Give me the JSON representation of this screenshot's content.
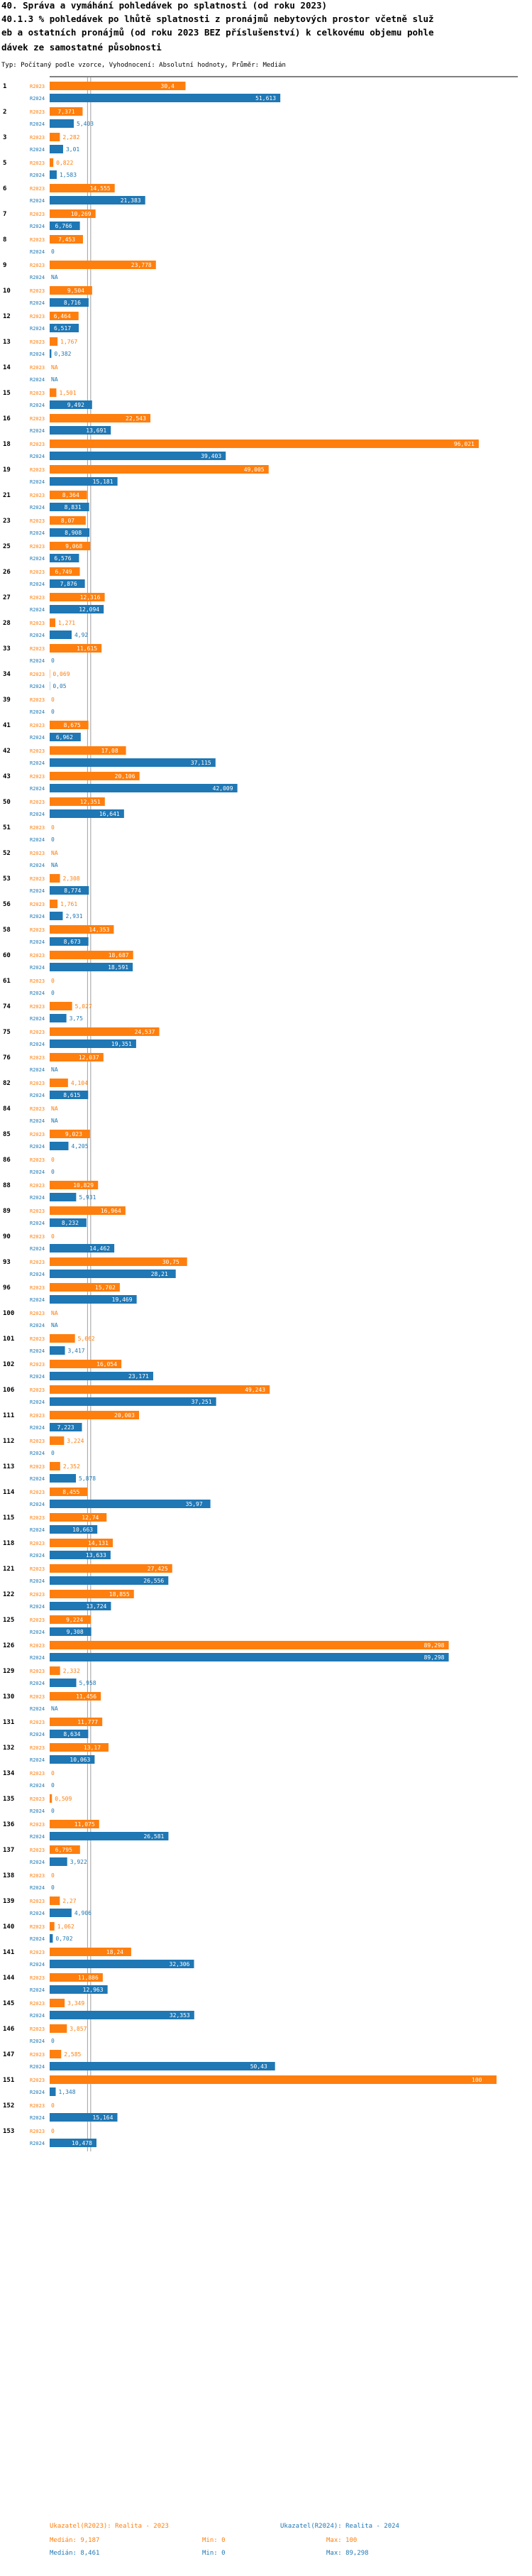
{
  "title_lines": [
    "40. Správa a vymáhání pohledávek po splatnosti (od roku 2023)",
    "40.1.3 % pohledávek po lhůtě splatnosti z pronájmů nebytových prostor včetně služ",
    "eb a ostatních pronájmů (od roku 2023 BEZ příslušenství) k celkovému objemu pohle",
    "dávek ze samostatné působnosti"
  ],
  "subtitle": "Typ: Počítaný podle vzorce, Vyhodnocení: Absolutní hodnoty, Průměr: Medián",
  "legend": {
    "r2023": {
      "name": "Ukazatel(R2023): Realita - 2023",
      "median": "Medián: 9,187",
      "min": "Min: 0",
      "max": "Max: 100"
    },
    "r2024": {
      "name": "Ukazatel(R2024): Realita - 2024",
      "median": "Medián: 8,461",
      "min": "Min: 0",
      "max": "Max: 89,298"
    }
  },
  "chart_data": {
    "type": "bar",
    "orientation": "horizontal",
    "series_names": [
      "R2023",
      "R2024"
    ],
    "colors": {
      "R2023": "#ff7f0e",
      "R2024": "#1f77b4",
      "text": "#000000",
      "grid": "#888888"
    },
    "xlim": [
      0,
      100
    ],
    "medians": {
      "R2023": 9.187,
      "R2024": 8.461
    },
    "categories": [
      {
        "id": "1",
        "r2023": {
          "v": 30.4,
          "l": "30,4"
        },
        "r2024": {
          "v": 51.613,
          "l": "51,613"
        }
      },
      {
        "id": "2",
        "r2023": {
          "v": 7.371,
          "l": "7,371"
        },
        "r2024": {
          "v": 5.403,
          "l": "5,403"
        }
      },
      {
        "id": "3",
        "r2023": {
          "v": 2.282,
          "l": "2,282"
        },
        "r2024": {
          "v": 3.01,
          "l": "3,01"
        }
      },
      {
        "id": "5",
        "r2023": {
          "v": 0.822,
          "l": "0,822"
        },
        "r2024": {
          "v": 1.583,
          "l": "1,583"
        }
      },
      {
        "id": "6",
        "r2023": {
          "v": 14.555,
          "l": "14,555"
        },
        "r2024": {
          "v": 21.383,
          "l": "21,383"
        }
      },
      {
        "id": "7",
        "r2023": {
          "v": 10.269,
          "l": "10,269"
        },
        "r2024": {
          "v": 6.766,
          "l": "6,766"
        }
      },
      {
        "id": "8",
        "r2023": {
          "v": 7.453,
          "l": "7,453"
        },
        "r2024": {
          "v": 0,
          "l": "0"
        }
      },
      {
        "id": "9",
        "r2023": {
          "v": 23.778,
          "l": "23,778"
        },
        "r2024": {
          "v": null,
          "l": "NA"
        }
      },
      {
        "id": "10",
        "r2023": {
          "v": 9.504,
          "l": "9,504"
        },
        "r2024": {
          "v": 8.716,
          "l": "8,716"
        }
      },
      {
        "id": "12",
        "r2023": {
          "v": 6.464,
          "l": "6,464"
        },
        "r2024": {
          "v": 6.517,
          "l": "6,517"
        }
      },
      {
        "id": "13",
        "r2023": {
          "v": 1.767,
          "l": "1,767"
        },
        "r2024": {
          "v": 0.382,
          "l": "0,382"
        }
      },
      {
        "id": "14",
        "r2023": {
          "v": null,
          "l": "NA"
        },
        "r2024": {
          "v": null,
          "l": "NA"
        }
      },
      {
        "id": "15",
        "r2023": {
          "v": 1.501,
          "l": "1,501"
        },
        "r2024": {
          "v": 9.492,
          "l": "9,492"
        }
      },
      {
        "id": "16",
        "r2023": {
          "v": 22.543,
          "l": "22,543"
        },
        "r2024": {
          "v": 13.691,
          "l": "13,691"
        }
      },
      {
        "id": "18",
        "r2023": {
          "v": 96.021,
          "l": "96,021"
        },
        "r2024": {
          "v": 39.403,
          "l": "39,403"
        }
      },
      {
        "id": "19",
        "r2023": {
          "v": 49.005,
          "l": "49,005"
        },
        "r2024": {
          "v": 15.181,
          "l": "15,181"
        }
      },
      {
        "id": "21",
        "r2023": {
          "v": 8.364,
          "l": "8,364"
        },
        "r2024": {
          "v": 8.831,
          "l": "8,831"
        }
      },
      {
        "id": "23",
        "r2023": {
          "v": 8.07,
          "l": "8,07"
        },
        "r2024": {
          "v": 8.908,
          "l": "8,908"
        }
      },
      {
        "id": "25",
        "r2023": {
          "v": 9.068,
          "l": "9,068"
        },
        "r2024": {
          "v": 6.576,
          "l": "6,576"
        }
      },
      {
        "id": "26",
        "r2023": {
          "v": 6.749,
          "l": "6,749"
        },
        "r2024": {
          "v": 7.876,
          "l": "7,876"
        }
      },
      {
        "id": "27",
        "r2023": {
          "v": 12.316,
          "l": "12,316"
        },
        "r2024": {
          "v": 12.094,
          "l": "12,094"
        }
      },
      {
        "id": "28",
        "r2023": {
          "v": 1.271,
          "l": "1,271"
        },
        "r2024": {
          "v": 4.92,
          "l": "4,92"
        }
      },
      {
        "id": "33",
        "r2023": {
          "v": 11.615,
          "l": "11,615"
        },
        "r2024": {
          "v": 0,
          "l": "0"
        }
      },
      {
        "id": "34",
        "r2023": {
          "v": 0.069,
          "l": "0,069"
        },
        "r2024": {
          "v": 0.05,
          "l": "0,05"
        }
      },
      {
        "id": "39",
        "r2023": {
          "v": 0,
          "l": "0"
        },
        "r2024": {
          "v": 0,
          "l": "0"
        }
      },
      {
        "id": "41",
        "r2023": {
          "v": 8.675,
          "l": "8,675"
        },
        "r2024": {
          "v": 6.962,
          "l": "6,962"
        }
      },
      {
        "id": "42",
        "r2023": {
          "v": 17.08,
          "l": "17,08"
        },
        "r2024": {
          "v": 37.115,
          "l": "37,115"
        }
      },
      {
        "id": "43",
        "r2023": {
          "v": 20.106,
          "l": "20,106"
        },
        "r2024": {
          "v": 42.009,
          "l": "42,009"
        }
      },
      {
        "id": "50",
        "r2023": {
          "v": 12.351,
          "l": "12,351"
        },
        "r2024": {
          "v": 16.641,
          "l": "16,641"
        }
      },
      {
        "id": "51",
        "r2023": {
          "v": 0,
          "l": "0"
        },
        "r2024": {
          "v": 0,
          "l": "0"
        }
      },
      {
        "id": "52",
        "r2023": {
          "v": null,
          "l": "NA"
        },
        "r2024": {
          "v": null,
          "l": "NA"
        }
      },
      {
        "id": "53",
        "r2023": {
          "v": 2.308,
          "l": "2,308"
        },
        "r2024": {
          "v": 8.774,
          "l": "8,774"
        }
      },
      {
        "id": "56",
        "r2023": {
          "v": 1.761,
          "l": "1,761"
        },
        "r2024": {
          "v": 2.931,
          "l": "2,931"
        }
      },
      {
        "id": "58",
        "r2023": {
          "v": 14.353,
          "l": "14,353"
        },
        "r2024": {
          "v": 8.673,
          "l": "8,673"
        }
      },
      {
        "id": "60",
        "r2023": {
          "v": 18.687,
          "l": "18,687"
        },
        "r2024": {
          "v": 18.591,
          "l": "18,591"
        }
      },
      {
        "id": "61",
        "r2023": {
          "v": 0,
          "l": "0"
        },
        "r2024": {
          "v": 0,
          "l": "0"
        }
      },
      {
        "id": "74",
        "r2023": {
          "v": 5.027,
          "l": "5,027"
        },
        "r2024": {
          "v": 3.75,
          "l": "3,75"
        }
      },
      {
        "id": "75",
        "r2023": {
          "v": 24.537,
          "l": "24,537"
        },
        "r2024": {
          "v": 19.351,
          "l": "19,351"
        }
      },
      {
        "id": "76",
        "r2023": {
          "v": 12.037,
          "l": "12,037"
        },
        "r2024": {
          "v": null,
          "l": "NA"
        }
      },
      {
        "id": "82",
        "r2023": {
          "v": 4.104,
          "l": "4,104"
        },
        "r2024": {
          "v": 8.615,
          "l": "8,615"
        }
      },
      {
        "id": "84",
        "r2023": {
          "v": null,
          "l": "NA"
        },
        "r2024": {
          "v": null,
          "l": "NA"
        }
      },
      {
        "id": "85",
        "r2023": {
          "v": 9.023,
          "l": "9,023"
        },
        "r2024": {
          "v": 4.205,
          "l": "4,205"
        }
      },
      {
        "id": "86",
        "r2023": {
          "v": 0,
          "l": "0"
        },
        "r2024": {
          "v": 0,
          "l": "0"
        }
      },
      {
        "id": "88",
        "r2023": {
          "v": 10.829,
          "l": "10,829"
        },
        "r2024": {
          "v": 5.931,
          "l": "5,931"
        }
      },
      {
        "id": "89",
        "r2023": {
          "v": 16.964,
          "l": "16,964"
        },
        "r2024": {
          "v": 8.232,
          "l": "8,232"
        }
      },
      {
        "id": "90",
        "r2023": {
          "v": 0,
          "l": "0"
        },
        "r2024": {
          "v": 14.462,
          "l": "14,462"
        }
      },
      {
        "id": "93",
        "r2023": {
          "v": 30.75,
          "l": "30,75"
        },
        "r2024": {
          "v": 28.21,
          "l": "28,21"
        }
      },
      {
        "id": "96",
        "r2023": {
          "v": 15.702,
          "l": "15,702"
        },
        "r2024": {
          "v": 19.469,
          "l": "19,469"
        }
      },
      {
        "id": "100",
        "r2023": {
          "v": null,
          "l": "NA"
        },
        "r2024": {
          "v": null,
          "l": "NA"
        }
      },
      {
        "id": "101",
        "r2023": {
          "v": 5.662,
          "l": "5,662"
        },
        "r2024": {
          "v": 3.417,
          "l": "3,417"
        }
      },
      {
        "id": "102",
        "r2023": {
          "v": 16.054,
          "l": "16,054"
        },
        "r2024": {
          "v": 23.171,
          "l": "23,171"
        }
      },
      {
        "id": "106",
        "r2023": {
          "v": 49.243,
          "l": "49,243"
        },
        "r2024": {
          "v": 37.251,
          "l": "37,251"
        }
      },
      {
        "id": "111",
        "r2023": {
          "v": 20.003,
          "l": "20,003"
        },
        "r2024": {
          "v": 7.223,
          "l": "7,223"
        }
      },
      {
        "id": "112",
        "r2023": {
          "v": 3.224,
          "l": "3,224"
        },
        "r2024": {
          "v": 0,
          "l": "0"
        }
      },
      {
        "id": "113",
        "r2023": {
          "v": 2.352,
          "l": "2,352"
        },
        "r2024": {
          "v": 5.878,
          "l": "5,878"
        }
      },
      {
        "id": "114",
        "r2023": {
          "v": 8.455,
          "l": "8,455"
        },
        "r2024": {
          "v": 35.97,
          "l": "35,97"
        }
      },
      {
        "id": "115",
        "r2023": {
          "v": 12.74,
          "l": "12,74"
        },
        "r2024": {
          "v": 10.663,
          "l": "10,663"
        }
      },
      {
        "id": "118",
        "r2023": {
          "v": 14.131,
          "l": "14,131"
        },
        "r2024": {
          "v": 13.633,
          "l": "13,633"
        }
      },
      {
        "id": "121",
        "r2023": {
          "v": 27.425,
          "l": "27,425"
        },
        "r2024": {
          "v": 26.556,
          "l": "26,556"
        }
      },
      {
        "id": "122",
        "r2023": {
          "v": 18.855,
          "l": "18,855"
        },
        "r2024": {
          "v": 13.724,
          "l": "13,724"
        }
      },
      {
        "id": "125",
        "r2023": {
          "v": 9.224,
          "l": "9,224"
        },
        "r2024": {
          "v": 9.308,
          "l": "9,308"
        }
      },
      {
        "id": "126",
        "r2023": {
          "v": 89.298,
          "l": "89,298"
        },
        "r2024": {
          "v": 89.298,
          "l": "89,298"
        }
      },
      {
        "id": "129",
        "r2023": {
          "v": 2.332,
          "l": "2,332"
        },
        "r2024": {
          "v": 5.958,
          "l": "5,958"
        }
      },
      {
        "id": "130",
        "r2023": {
          "v": 11.456,
          "l": "11,456"
        },
        "r2024": {
          "v": null,
          "l": "NA"
        }
      },
      {
        "id": "131",
        "r2023": {
          "v": 11.777,
          "l": "11,777"
        },
        "r2024": {
          "v": 8.634,
          "l": "8,634"
        }
      },
      {
        "id": "132",
        "r2023": {
          "v": 13.17,
          "l": "13,17"
        },
        "r2024": {
          "v": 10.063,
          "l": "10,063"
        }
      },
      {
        "id": "134",
        "r2023": {
          "v": 0,
          "l": "0"
        },
        "r2024": {
          "v": 0,
          "l": "0"
        }
      },
      {
        "id": "135",
        "r2023": {
          "v": 0.509,
          "l": "0,509"
        },
        "r2024": {
          "v": 0,
          "l": "0"
        }
      },
      {
        "id": "136",
        "r2023": {
          "v": 11.075,
          "l": "11,075"
        },
        "r2024": {
          "v": 26.581,
          "l": "26,581"
        }
      },
      {
        "id": "137",
        "r2023": {
          "v": 6.795,
          "l": "6,795"
        },
        "r2024": {
          "v": 3.922,
          "l": "3,922"
        }
      },
      {
        "id": "138",
        "r2023": {
          "v": 0,
          "l": "0"
        },
        "r2024": {
          "v": 0,
          "l": "0"
        }
      },
      {
        "id": "139",
        "r2023": {
          "v": 2.27,
          "l": "2,27"
        },
        "r2024": {
          "v": 4.906,
          "l": "4,906"
        }
      },
      {
        "id": "140",
        "r2023": {
          "v": 1.062,
          "l": "1,062"
        },
        "r2024": {
          "v": 0.702,
          "l": "0,702"
        }
      },
      {
        "id": "141",
        "r2023": {
          "v": 18.24,
          "l": "18,24"
        },
        "r2024": {
          "v": 32.306,
          "l": "32,306"
        }
      },
      {
        "id": "144",
        "r2023": {
          "v": 11.886,
          "l": "11,886"
        },
        "r2024": {
          "v": 12.963,
          "l": "12,963"
        }
      },
      {
        "id": "145",
        "r2023": {
          "v": 3.349,
          "l": "3,349"
        },
        "r2024": {
          "v": 32.353,
          "l": "32,353"
        }
      },
      {
        "id": "146",
        "r2023": {
          "v": 3.857,
          "l": "3,857"
        },
        "r2024": {
          "v": 0,
          "l": "0"
        }
      },
      {
        "id": "147",
        "r2023": {
          "v": 2.585,
          "l": "2,585"
        },
        "r2024": {
          "v": 50.43,
          "l": "50,43"
        }
      },
      {
        "id": "151",
        "r2023": {
          "v": 100,
          "l": "100"
        },
        "r2024": {
          "v": 1.348,
          "l": "1,348"
        }
      },
      {
        "id": "152",
        "r2023": {
          "v": 0,
          "l": "0"
        },
        "r2024": {
          "v": 15.164,
          "l": "15,164"
        }
      },
      {
        "id": "153",
        "r2023": {
          "v": 0,
          "l": "0"
        },
        "r2024": {
          "v": 10.478,
          "l": "10,478"
        }
      }
    ]
  }
}
